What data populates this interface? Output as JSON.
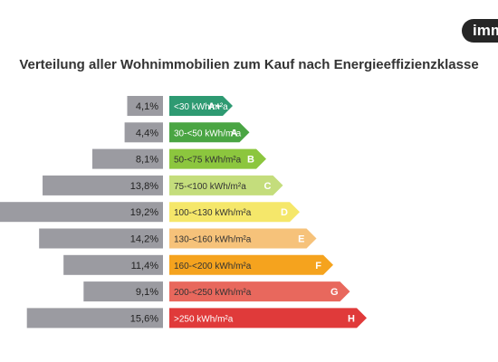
{
  "brand": {
    "logo_text": "imm"
  },
  "chart_data": {
    "type": "bar",
    "title": "Verteilung aller Wohnimmobilien zum Kauf nach Energieeffizienzklasse",
    "series": [
      {
        "values": [
          4.1,
          4.4,
          8.1,
          13.8,
          19.2,
          14.2,
          11.4,
          9.1,
          15.6
        ]
      }
    ],
    "value_labels": [
      "4,1%",
      "4,4%",
      "8,1%",
      "13,8%",
      "19,2%",
      "14,2%",
      "11,4%",
      "9,1%",
      "15,6%"
    ],
    "categories": [
      "<30 kWh/m²a",
      "30-<50 kWh/m²a",
      "50-<75 kWh/m²a",
      "75-<100 kWh/m²a",
      "100-<130 kWh/m²a",
      "130-<160 kWh/m²a",
      "160-<200 kWh/m²a",
      "200-<250 kWh/m²a",
      ">250 kWh/m²a"
    ],
    "classes": [
      "A+",
      "A",
      "B",
      "C",
      "D",
      "E",
      "F",
      "G",
      "H"
    ],
    "class_colors": [
      "#2e9a72",
      "#4aa543",
      "#8cc63e",
      "#c4dd7c",
      "#f5e76a",
      "#f6c27a",
      "#f5a31e",
      "#e8685d",
      "#e03a3a"
    ],
    "bar_color": "#9b9ba1"
  }
}
